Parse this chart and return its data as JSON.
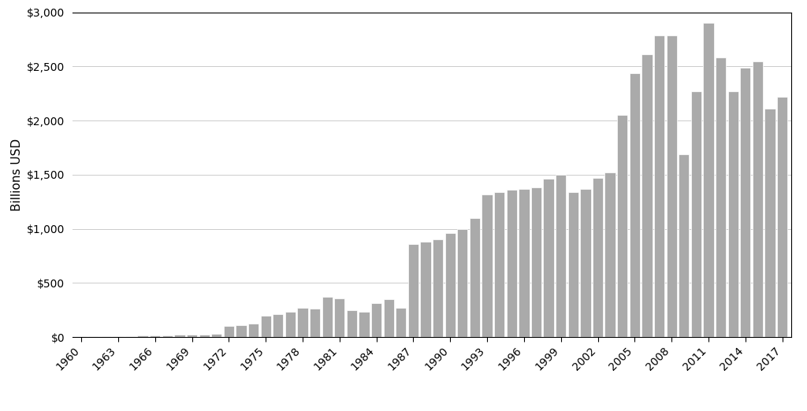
{
  "years": [
    1960,
    1961,
    1962,
    1963,
    1964,
    1965,
    1966,
    1967,
    1968,
    1969,
    1970,
    1971,
    1972,
    1973,
    1974,
    1975,
    1976,
    1977,
    1978,
    1979,
    1980,
    1981,
    1982,
    1983,
    1984,
    1985,
    1986,
    1987,
    1988,
    1989,
    1990,
    1991,
    1992,
    1993,
    1994,
    1995,
    1996,
    1997,
    1998,
    1999,
    2000,
    2001,
    2002,
    2003,
    2004,
    2005,
    2006,
    2007,
    2008,
    2009,
    2010,
    2011,
    2012,
    2013,
    2014,
    2015,
    2016,
    2017
  ],
  "values": [
    5,
    6,
    7,
    8,
    10,
    12,
    14,
    17,
    20,
    22,
    25,
    28,
    100,
    110,
    125,
    200,
    210,
    230,
    270,
    260,
    370,
    355,
    245,
    230,
    310,
    350,
    270,
    860,
    880,
    900,
    960,
    1000,
    1100,
    1320,
    1340,
    1360,
    1370,
    1380,
    1460,
    1500,
    1340,
    1370,
    1470,
    1520,
    2050,
    2440,
    2610,
    2790,
    2790,
    1690,
    2270,
    2900,
    2580,
    2270,
    2490,
    2545,
    2110,
    2220
  ],
  "bar_color": "#aaaaaa",
  "bar_edgecolor": "white",
  "ylabel": "Billions USD",
  "ylim": [
    0,
    3000
  ],
  "ytick_values": [
    0,
    500,
    1000,
    1500,
    2000,
    2500,
    3000
  ],
  "background_color": "#ffffff",
  "grid_color": "#cccccc",
  "tick_label_fontsize": 10,
  "ylabel_fontsize": 11
}
